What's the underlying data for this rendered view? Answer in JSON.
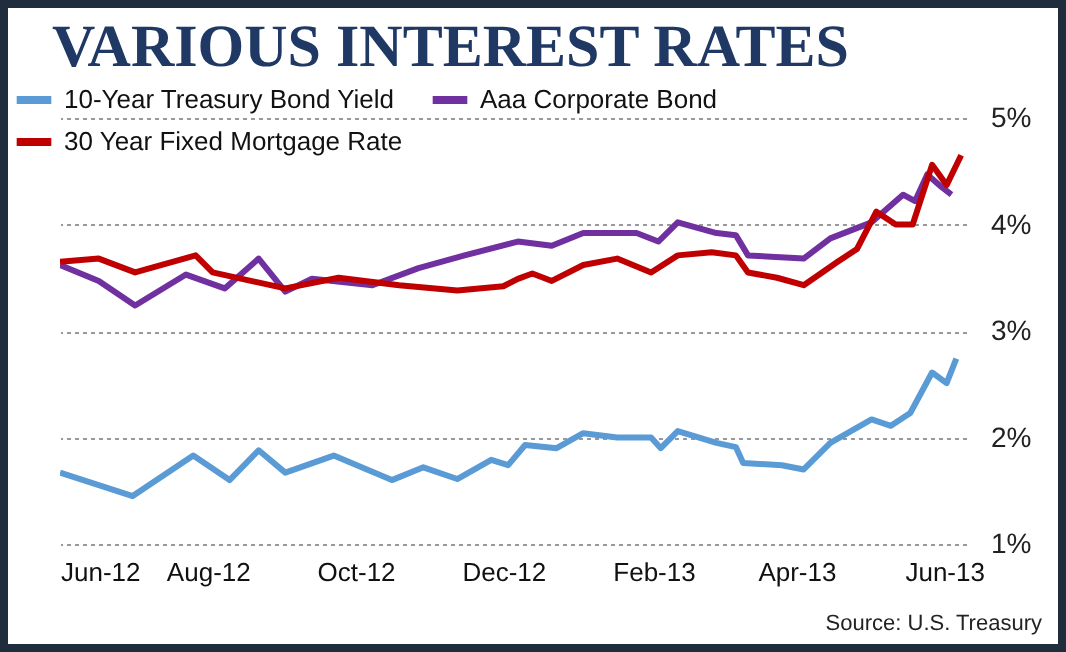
{
  "chart_data": {
    "type": "line",
    "title": "VARIOUS INTEREST RATES",
    "annotations": [
      "Source: U.S. Treasury"
    ],
    "xlim": [
      "2012-06-01",
      "2013-06-10"
    ],
    "xticks": [
      {
        "value": "2012-06-01",
        "label": "Jun-12"
      },
      {
        "value": "2012-08-01",
        "label": "Aug-12"
      },
      {
        "value": "2012-10-01",
        "label": "Oct-12"
      },
      {
        "value": "2012-12-01",
        "label": "Dec-12"
      },
      {
        "value": "2013-02-01",
        "label": "Feb-13"
      },
      {
        "value": "2013-04-01",
        "label": "Apr-13"
      },
      {
        "value": "2013-06-01",
        "label": "Jun-13"
      }
    ],
    "ylim": [
      1,
      5
    ],
    "yticks": [
      {
        "value": 1,
        "label": "1%"
      },
      {
        "value": 2,
        "label": "2%"
      },
      {
        "value": 3,
        "label": "3%"
      },
      {
        "value": 4,
        "label": "4%"
      },
      {
        "value": 5,
        "label": "5%"
      }
    ],
    "grid": "y",
    "legend": "top left",
    "series": [
      {
        "name": "10-Year Treasury Bond Yield",
        "color": "#5b9bd5",
        "x": [
          "2012-06-01",
          "2012-07-01",
          "2012-07-26",
          "2012-08-10",
          "2012-08-22",
          "2012-09-02",
          "2012-09-22",
          "2012-10-16",
          "2012-10-29",
          "2012-11-12",
          "2012-11-26",
          "2012-12-03",
          "2012-12-10",
          "2012-12-23",
          "2013-01-03",
          "2013-01-17",
          "2013-01-31",
          "2013-02-04",
          "2013-02-11",
          "2013-02-27",
          "2013-03-07",
          "2013-03-10",
          "2013-03-26",
          "2013-04-04",
          "2013-04-15",
          "2013-05-02",
          "2013-05-10",
          "2013-05-18",
          "2013-05-27",
          "2013-06-02",
          "2013-06-06"
        ],
        "values": [
          1.67,
          1.45,
          1.83,
          1.6,
          1.88,
          1.67,
          1.83,
          1.6,
          1.72,
          1.61,
          1.79,
          1.74,
          1.93,
          1.9,
          2.04,
          2.0,
          2.0,
          1.9,
          2.06,
          1.95,
          1.91,
          1.76,
          1.74,
          1.7,
          1.95,
          2.17,
          2.11,
          2.23,
          2.61,
          2.51,
          2.74
        ]
      },
      {
        "name": "Aaa Corporate Bond",
        "color": "#7030a0",
        "x": [
          "2012-06-01",
          "2012-06-17",
          "2012-07-02",
          "2012-07-23",
          "2012-08-08",
          "2012-08-22",
          "2012-09-02",
          "2012-09-13",
          "2012-10-08",
          "2012-10-27",
          "2012-11-15",
          "2012-12-07",
          "2012-12-21",
          "2013-01-03",
          "2013-01-25",
          "2013-02-03",
          "2013-02-11",
          "2013-02-27",
          "2013-03-07",
          "2013-03-12",
          "2013-04-04",
          "2013-04-15",
          "2013-05-02",
          "2013-05-15",
          "2013-05-20",
          "2013-05-25",
          "2013-05-31",
          "2013-06-04"
        ],
        "values": [
          3.62,
          3.47,
          3.24,
          3.53,
          3.4,
          3.68,
          3.37,
          3.49,
          3.43,
          3.59,
          3.71,
          3.84,
          3.8,
          3.92,
          3.92,
          3.84,
          4.02,
          3.92,
          3.9,
          3.71,
          3.68,
          3.87,
          4.02,
          4.28,
          4.22,
          4.47,
          4.35,
          4.28
        ]
      },
      {
        "name": "30 Year Fixed Mortgage Rate",
        "color": "#c00000",
        "x": [
          "2012-06-01",
          "2012-06-17",
          "2012-07-02",
          "2012-07-27",
          "2012-08-03",
          "2012-09-02",
          "2012-09-24",
          "2012-10-19",
          "2012-11-12",
          "2012-12-01",
          "2012-12-07",
          "2012-12-13",
          "2012-12-21",
          "2013-01-03",
          "2013-01-17",
          "2013-01-31",
          "2013-02-11",
          "2013-02-25",
          "2013-03-07",
          "2013-03-12",
          "2013-03-24",
          "2013-04-04",
          "2013-04-18",
          "2013-04-26",
          "2013-05-04",
          "2013-05-12",
          "2013-05-19",
          "2013-05-27",
          "2013-06-02",
          "2013-06-08"
        ],
        "values": [
          3.65,
          3.68,
          3.55,
          3.71,
          3.55,
          3.4,
          3.5,
          3.43,
          3.38,
          3.42,
          3.49,
          3.54,
          3.47,
          3.62,
          3.68,
          3.55,
          3.71,
          3.74,
          3.71,
          3.55,
          3.5,
          3.43,
          3.65,
          3.77,
          4.12,
          4.0,
          4.0,
          4.56,
          4.37,
          4.65
        ]
      }
    ]
  }
}
